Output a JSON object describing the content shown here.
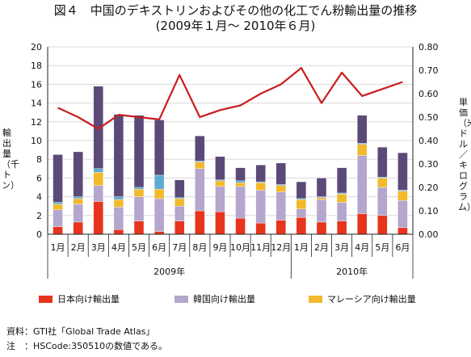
{
  "title": {
    "line1": "図４　中国のデキストリンおよびその他の化工でん粉輸出量の推移",
    "line2": "(2009年１月～ 2010年６月)"
  },
  "chart_data": {
    "type": "bar",
    "stacked": true,
    "categories": [
      "1月",
      "2月",
      "3月",
      "4月",
      "5月",
      "6月",
      "7月",
      "8月",
      "9月",
      "10月",
      "11月",
      "12月",
      "1月",
      "2月",
      "3月",
      "4月",
      "5月",
      "6月"
    ],
    "year_groups": [
      {
        "label": "2009年",
        "count": 12
      },
      {
        "label": "2010年",
        "count": 6
      }
    ],
    "ylabel": "輸出量（千トン）",
    "ylabel_right": "単価（米ドル／キログラム）",
    "ylim": [
      0,
      20
    ],
    "yticks": [
      0,
      2,
      4,
      6,
      8,
      10,
      12,
      14,
      16,
      18,
      20
    ],
    "ylim_right": [
      0,
      0.8
    ],
    "yticks_right": [
      "0.00",
      "0.10",
      "0.20",
      "0.30",
      "0.40",
      "0.50",
      "0.60",
      "0.70",
      "0.80"
    ],
    "grid": true,
    "legend_position": "bottom",
    "series": [
      {
        "name": "日本向け輸出量",
        "color": "#e8341c",
        "values": [
          0.8,
          1.3,
          3.5,
          0.5,
          1.4,
          0.3,
          1.4,
          2.5,
          2.4,
          1.7,
          1.2,
          1.5,
          1.8,
          1.3,
          1.4,
          2.2,
          2.0,
          0.7
        ]
      },
      {
        "name": "韓国向け輸出量",
        "color": "#b4a6cc",
        "values": [
          1.8,
          1.9,
          1.7,
          2.4,
          2.6,
          3.5,
          1.6,
          4.5,
          2.7,
          3.4,
          3.5,
          3.0,
          0.9,
          2.4,
          2.0,
          6.2,
          3.0,
          2.9
        ]
      },
      {
        "name": "マレーシア向け輸出量",
        "color": "#f2b92c",
        "values": [
          0.6,
          0.6,
          1.4,
          0.8,
          0.8,
          1.0,
          0.8,
          0.7,
          0.6,
          0.4,
          0.8,
          0.7,
          1.0,
          0.2,
          0.9,
          1.2,
          1.0,
          1.0
        ]
      },
      {
        "name": "",
        "color": "#5faad2",
        "values": [
          0.2,
          0.2,
          0.4,
          0.3,
          0.2,
          1.5,
          0.1,
          0.1,
          0.1,
          0.2,
          0.1,
          0.1,
          0.1,
          0.1,
          0.1,
          0.1,
          0.1,
          0.1
        ]
      },
      {
        "name": "",
        "color": "#5b4a78",
        "values": [
          5.1,
          4.8,
          8.8,
          8.8,
          7.7,
          5.9,
          1.9,
          2.7,
          2.5,
          1.4,
          1.8,
          2.3,
          1.8,
          2.0,
          2.7,
          3.0,
          3.2,
          4.0
        ]
      }
    ],
    "line_series": {
      "name": "単価",
      "axis": "right",
      "color": "#c81e1e",
      "values": [
        0.54,
        0.5,
        0.45,
        0.51,
        0.5,
        0.49,
        0.68,
        0.5,
        0.53,
        0.55,
        0.6,
        0.64,
        0.71,
        0.56,
        0.69,
        0.59,
        0.62,
        0.65
      ]
    }
  },
  "notes": {
    "source": "資料：GTI社「Global Trade Atlas」",
    "note": "注　：HSCode:350510の数値である。"
  }
}
